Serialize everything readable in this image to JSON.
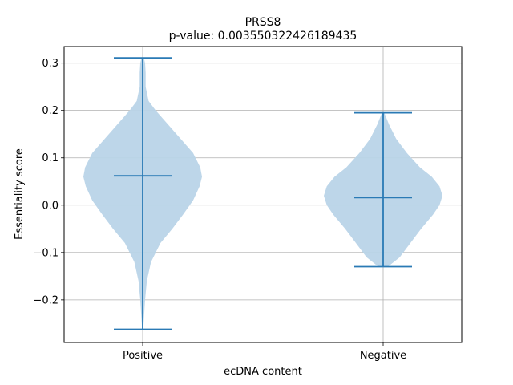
{
  "chart_data": {
    "type": "violin",
    "title": "PRSS8",
    "subtitle": "p-value: 0.003550322426189435",
    "xlabel": "ecDNA content",
    "ylabel": "Essentiality score",
    "ylim": [
      -0.29,
      0.335
    ],
    "yticks": [
      -0.2,
      -0.1,
      0.0,
      0.1,
      0.2,
      0.3
    ],
    "ytick_labels": [
      "−0.2",
      "−0.1",
      "0.0",
      "0.1",
      "0.2",
      "0.3"
    ],
    "grid": true,
    "categories": [
      "Positive",
      "Negative"
    ],
    "fill_color": "#b9d4e8",
    "line_color": "#2a7ab5",
    "violins": [
      {
        "category": "Positive",
        "min": -0.262,
        "max": 0.311,
        "median": 0.062,
        "density": [
          [
            -0.262,
            0.01
          ],
          [
            -0.24,
            0.02
          ],
          [
            -0.2,
            0.04
          ],
          [
            -0.16,
            0.07
          ],
          [
            -0.12,
            0.14
          ],
          [
            -0.08,
            0.3
          ],
          [
            -0.05,
            0.5
          ],
          [
            -0.02,
            0.68
          ],
          [
            0.01,
            0.85
          ],
          [
            0.04,
            0.96
          ],
          [
            0.06,
            1.0
          ],
          [
            0.08,
            0.97
          ],
          [
            0.11,
            0.85
          ],
          [
            0.14,
            0.64
          ],
          [
            0.17,
            0.43
          ],
          [
            0.2,
            0.22
          ],
          [
            0.22,
            0.1
          ],
          [
            0.25,
            0.05
          ],
          [
            0.28,
            0.05
          ],
          [
            0.3,
            0.04
          ],
          [
            0.311,
            0.02
          ]
        ]
      },
      {
        "category": "Negative",
        "min": -0.13,
        "max": 0.195,
        "median": 0.016,
        "density": [
          [
            -0.13,
            0.08
          ],
          [
            -0.11,
            0.28
          ],
          [
            -0.08,
            0.46
          ],
          [
            -0.05,
            0.64
          ],
          [
            -0.02,
            0.84
          ],
          [
            0.0,
            0.95
          ],
          [
            0.02,
            1.0
          ],
          [
            0.04,
            0.95
          ],
          [
            0.06,
            0.82
          ],
          [
            0.08,
            0.62
          ],
          [
            0.11,
            0.4
          ],
          [
            0.14,
            0.22
          ],
          [
            0.17,
            0.1
          ],
          [
            0.195,
            0.02
          ]
        ]
      }
    ]
  }
}
